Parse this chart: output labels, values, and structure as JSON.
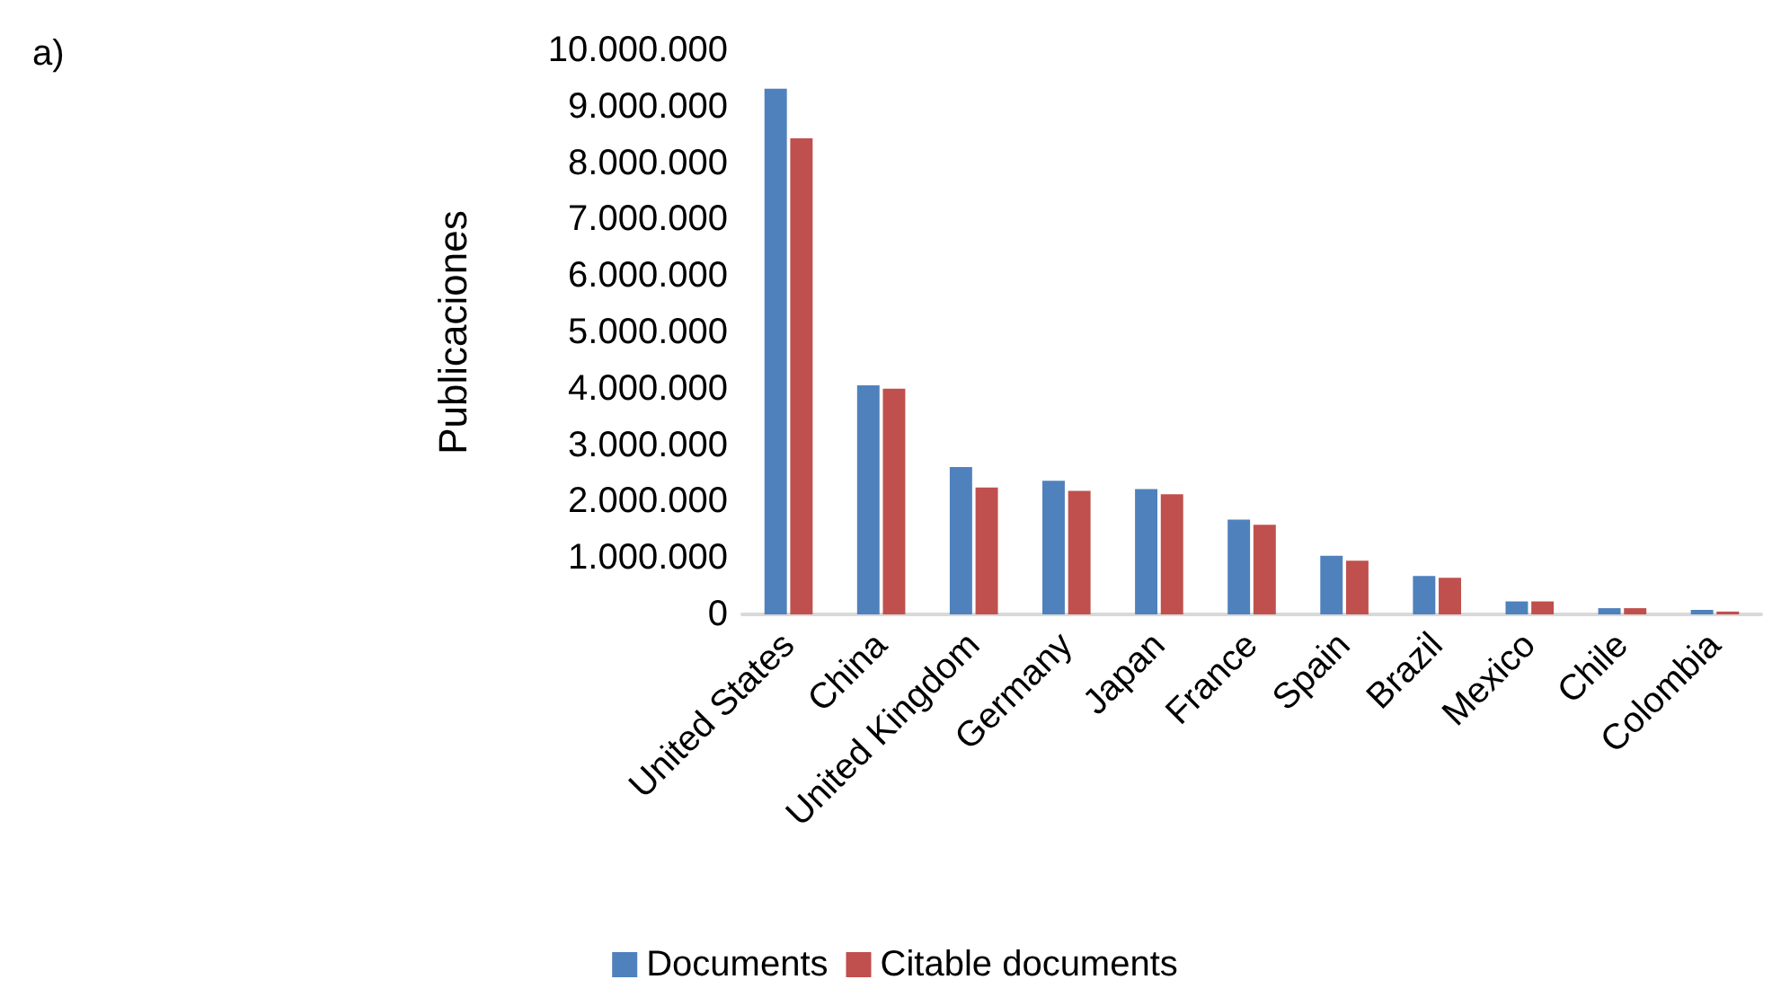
{
  "chart_data": {
    "type": "bar",
    "ylabel": "Publicaciones",
    "annotations": [
      "a)"
    ],
    "categories": [
      "United States",
      "China",
      "United Kingdom",
      "Germany",
      "Japan",
      "France",
      "Spain",
      "Brazil",
      "Mexico",
      "Chile",
      "Colombia"
    ],
    "series": [
      {
        "name": "Documents",
        "color": "#4f81bd",
        "values": [
          9320000,
          4060000,
          2610000,
          2370000,
          2220000,
          1680000,
          1040000,
          680000,
          230000,
          110000,
          80000
        ]
      },
      {
        "name": "Citable documents",
        "color": "#c0504d",
        "values": [
          8440000,
          4000000,
          2250000,
          2190000,
          2130000,
          1590000,
          950000,
          650000,
          230000,
          110000,
          50000
        ]
      }
    ],
    "ylim": [
      0,
      10000000
    ],
    "yticks": [
      {
        "value": 0,
        "label": "0"
      },
      {
        "value": 1000000,
        "label": "1.000.000"
      },
      {
        "value": 2000000,
        "label": "2.000.000"
      },
      {
        "value": 3000000,
        "label": "3.000.000"
      },
      {
        "value": 4000000,
        "label": "4.000.000"
      },
      {
        "value": 5000000,
        "label": "5.000.000"
      },
      {
        "value": 6000000,
        "label": "6.000.000"
      },
      {
        "value": 7000000,
        "label": "7.000.000"
      },
      {
        "value": 8000000,
        "label": "8.000.000"
      },
      {
        "value": 9000000,
        "label": "9.000.000"
      },
      {
        "value": 10000000,
        "label": "10.000.000"
      }
    ],
    "grid": false,
    "legend": "bottom"
  }
}
